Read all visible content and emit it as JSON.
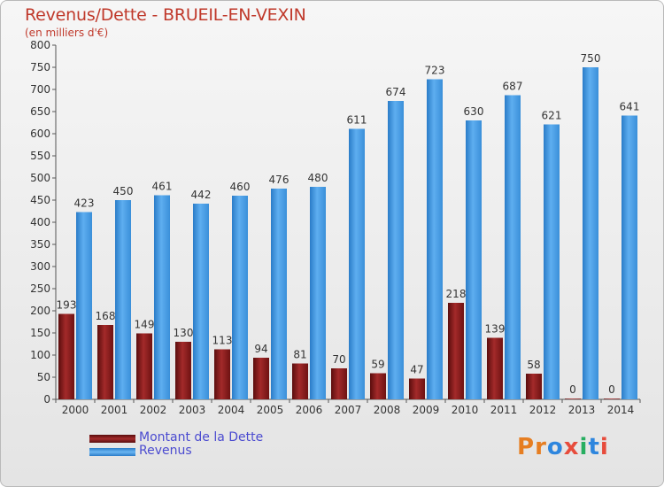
{
  "title": "Revenus/Dette - BRUEIL-EN-VEXIN",
  "subtitle": "(en milliers d'€)",
  "logo": {
    "text": "Proxiti",
    "colors": [
      "#e67e22",
      "#e67e22",
      "#2e86de",
      "#e74c3c",
      "#27ae60",
      "#2e86de",
      "#e74c3c"
    ]
  },
  "chart_data": {
    "type": "bar",
    "categories": [
      "2000",
      "2001",
      "2002",
      "2003",
      "2004",
      "2005",
      "2006",
      "2007",
      "2008",
      "2009",
      "2010",
      "2011",
      "2012",
      "2013",
      "2014"
    ],
    "series": [
      {
        "name": "Montant de la Dette",
        "color": "#8b1a1a",
        "values": [
          193,
          168,
          149,
          130,
          113,
          94,
          81,
          70,
          59,
          47,
          218,
          139,
          58,
          0,
          0
        ]
      },
      {
        "name": "Revenus",
        "color": "#3a8fd9",
        "values": [
          423,
          450,
          461,
          442,
          460,
          476,
          480,
          611,
          674,
          723,
          630,
          687,
          621,
          750,
          641
        ]
      }
    ],
    "ylim": [
      0,
      800
    ],
    "yticks": [
      0,
      50,
      100,
      150,
      200,
      250,
      300,
      350,
      400,
      450,
      500,
      550,
      600,
      650,
      700,
      750,
      800
    ],
    "grid": false,
    "legend": "bottom-left"
  }
}
